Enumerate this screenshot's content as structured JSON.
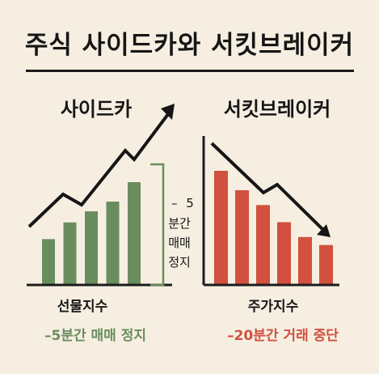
{
  "page": {
    "title": "주식 사이드카와 서킷브레이커",
    "left_footnote": "–5분간 매매 정지",
    "right_footnote": "–20분간 거래 중단"
  },
  "colors": {
    "background": "#f6efe1",
    "sidecar_bar": "#6a8d5e",
    "circuit_bar": "#d1503f",
    "ink": "#161616"
  },
  "chart_data": [
    {
      "type": "bar",
      "title": "사이드카",
      "xlabel": "선물지수",
      "values": [
        33,
        45,
        53,
        60,
        74
      ],
      "trend": "up",
      "annotation": {
        "dash": "–",
        "value": "5",
        "lines": [
          "분간",
          "매매",
          "정지"
        ]
      }
    },
    {
      "type": "bar",
      "title": "서킷브레이커",
      "xlabel": "주가지수",
      "values": [
        100,
        83,
        70,
        55,
        42,
        35
      ],
      "trend": "down"
    }
  ]
}
